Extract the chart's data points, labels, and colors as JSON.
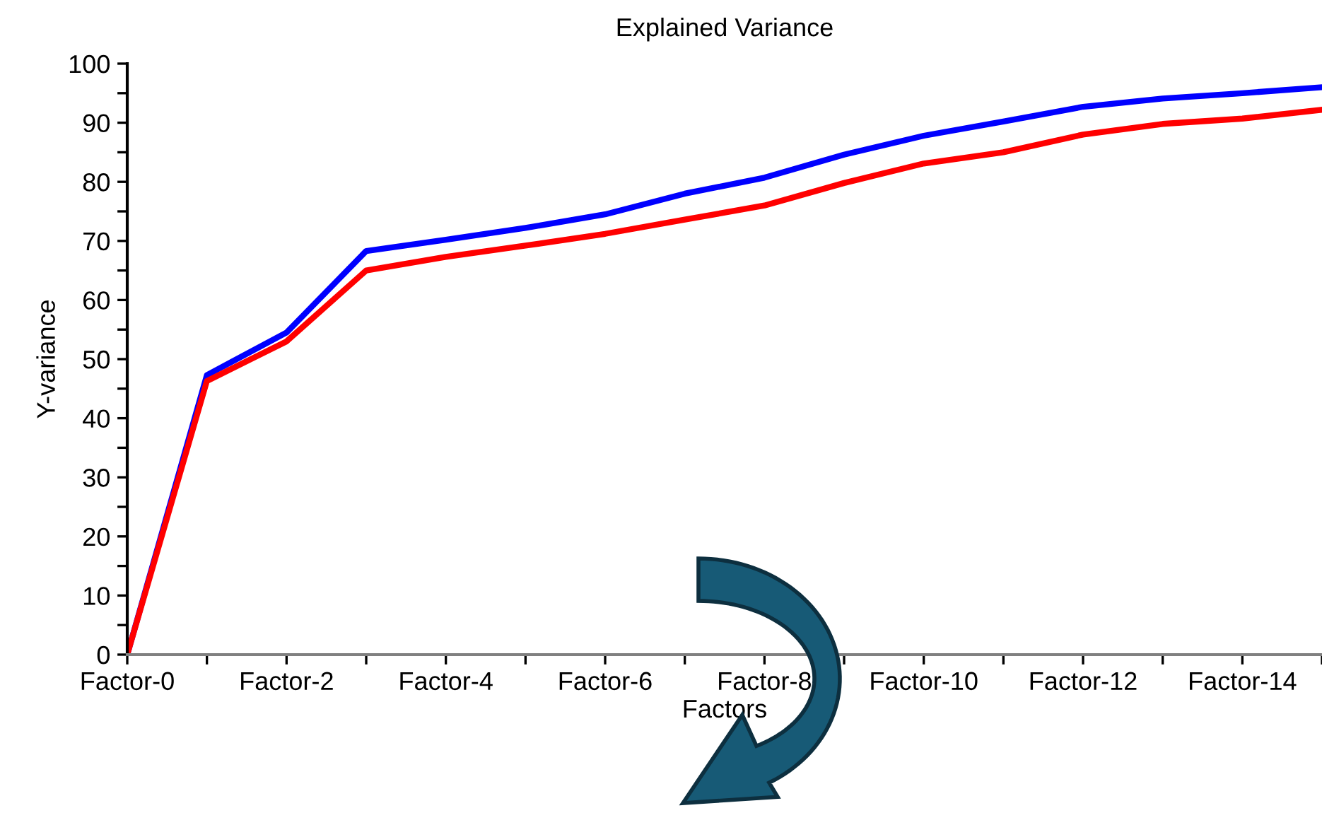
{
  "chart_data": {
    "type": "line",
    "title": "Explained Variance",
    "xlabel": "Factors",
    "ylabel": "Y-variance",
    "categories": [
      "Factor-0",
      null,
      "Factor-2",
      null,
      "Factor-4",
      null,
      "Factor-6",
      null,
      "Factor-8",
      null,
      "Factor-10",
      null,
      "Factor-12",
      null,
      "Factor-14",
      null
    ],
    "series": [
      {
        "color": "#0000ff",
        "values": [
          0,
          47.3,
          54.5,
          68.3,
          70.2,
          72.2,
          74.5,
          78,
          80.7,
          84.6,
          87.8,
          90.2,
          92.7,
          94.1,
          95,
          96
        ]
      },
      {
        "color": "#ff0000",
        "values": [
          0,
          46.3,
          53,
          65,
          67.3,
          69.2,
          71.2,
          73.6,
          76,
          79.8,
          83.1,
          85,
          88,
          89.8,
          90.7,
          92.2
        ]
      }
    ],
    "ylim": [
      0,
      100
    ],
    "yticks": [
      0,
      {
        "value": 5,
        "label": null
      },
      10,
      {
        "value": 15,
        "label": null
      },
      20,
      {
        "value": 25,
        "label": null
      },
      30,
      {
        "value": 35,
        "label": null
      },
      40,
      {
        "value": 45,
        "label": null
      },
      50,
      {
        "value": 55,
        "label": null
      },
      60,
      {
        "value": 65,
        "label": null
      },
      70,
      {
        "value": 75,
        "label": null
      },
      80,
      {
        "value": 85,
        "label": null
      },
      90,
      {
        "value": 95,
        "label": null
      },
      100
    ],
    "grid": false,
    "legend": false,
    "marker": "none",
    "line_style": "solid"
  }
}
